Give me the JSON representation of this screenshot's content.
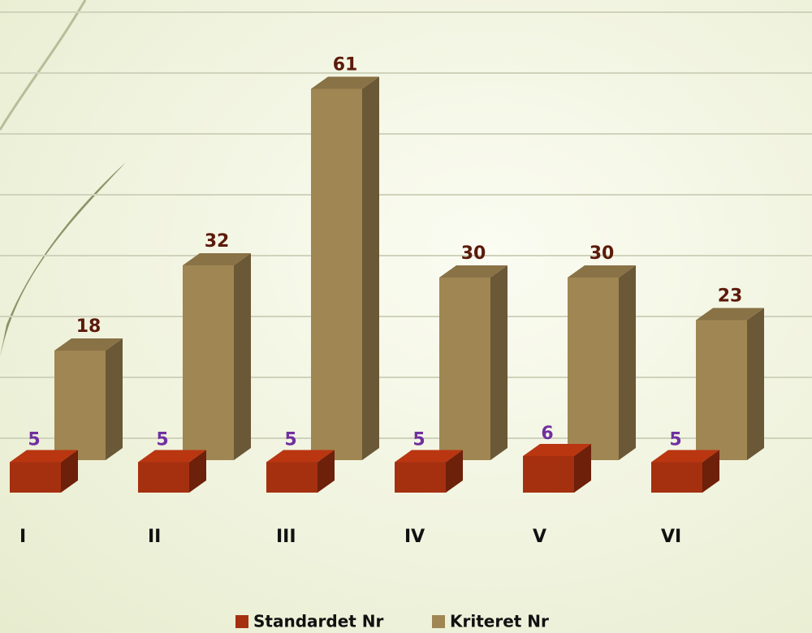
{
  "chart_data": {
    "type": "bar3d",
    "categories": [
      "I",
      "II",
      "III",
      "IV",
      "V",
      "VI"
    ],
    "series": [
      {
        "name": "Standardet Nr",
        "color": "#a5300f",
        "values": [
          5,
          5,
          5,
          5,
          6,
          5
        ]
      },
      {
        "name": "Kriteret Nr",
        "color": "#a08652",
        "values": [
          18,
          32,
          61,
          30,
          30,
          23
        ]
      }
    ],
    "ylim": [
      0,
      70
    ],
    "yticks": [
      0,
      10,
      20,
      30,
      40,
      50,
      60,
      70
    ],
    "grid": true
  }
}
